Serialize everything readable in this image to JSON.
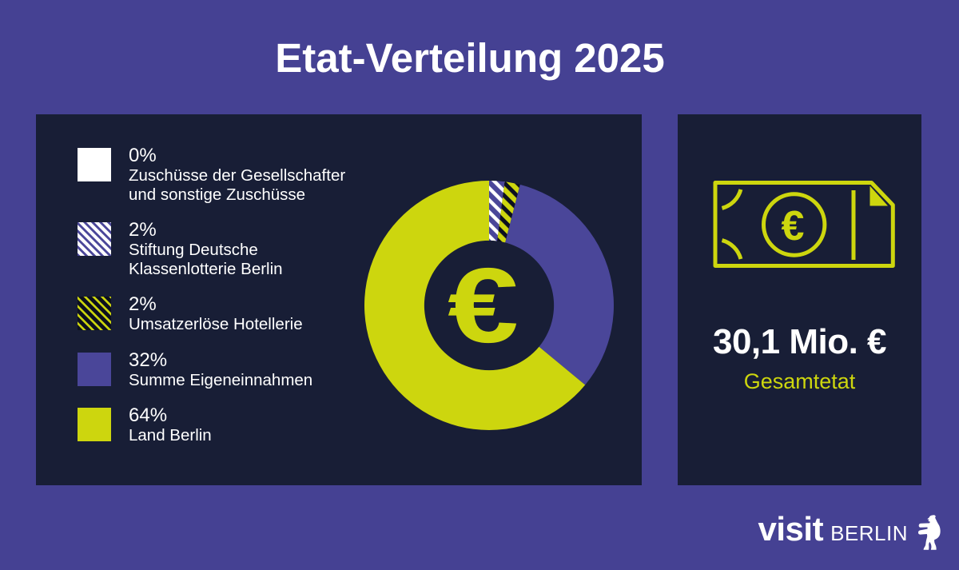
{
  "title": "Etat-Verteilung 2025",
  "colors": {
    "background": "#454193",
    "panel": "#181e36",
    "purple": "#4a4699",
    "yellow": "#cdd60e",
    "white": "#ffffff",
    "stripe_dark": "#0c101f"
  },
  "chart_data": {
    "type": "donut",
    "title": "Etat-Verteilung 2025",
    "start_angle_deg": 0,
    "direction": "clockwise",
    "inner_radius_ratio": 0.52,
    "center_icon": "euro-sign",
    "segments": [
      {
        "pct_label": "0%",
        "value": 0,
        "label": "Zuschüsse der Gesellschafter und sonstige Zuschüsse",
        "swatch": "white"
      },
      {
        "pct_label": "2%",
        "value": 2,
        "label": "Stiftung Deutsche Klassenlotterie Berlin",
        "swatch": "hatch-white-on-purple"
      },
      {
        "pct_label": "2%",
        "value": 2,
        "label": "Umsatzerlöse Hotellerie",
        "swatch": "hatch-dark-on-yellow"
      },
      {
        "pct_label": "32%",
        "value": 32,
        "label": "Summe Eigeneinnahmen",
        "swatch": "purple"
      },
      {
        "pct_label": "64%",
        "value": 64,
        "label": "Land Berlin",
        "swatch": "yellow"
      }
    ]
  },
  "total": {
    "value": "30,1 Mio. €",
    "label": "Gesamtetat",
    "icon": "euro-banknote"
  },
  "center_symbol": "€",
  "logo": {
    "word1": "visit",
    "word2": "BERLIN",
    "icon": "berlin-bear"
  }
}
